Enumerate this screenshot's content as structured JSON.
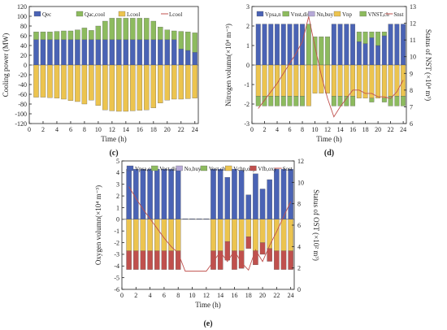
{
  "chart_data": [
    {
      "panel": "(c)",
      "type": "bar",
      "ylabel": "Cooling power (MW)",
      "xlabel": "Time (h)",
      "ylim": [
        -120,
        120
      ],
      "yticks": [
        -120,
        -100,
        -80,
        -60,
        -40,
        -20,
        0,
        20,
        40,
        60,
        80,
        100,
        120
      ],
      "xticks": [
        0,
        2,
        4,
        6,
        8,
        10,
        12,
        14,
        16,
        18,
        20,
        22,
        24
      ],
      "legend": [
        {
          "label": "Qₑc",
          "display": "Qec",
          "color": "#4a63b5"
        },
        {
          "label": "Qac,cool",
          "display": "Qac,cool",
          "color": "#8dbb5e"
        },
        {
          "label": "Lcool",
          "display": "Lcool",
          "color": "#ecc44f"
        },
        {
          "label": "Lcool",
          "display": "Lcool",
          "color": "#c0504d",
          "line": true
        }
      ],
      "x": [
        1,
        2,
        3,
        4,
        5,
        6,
        7,
        8,
        9,
        10,
        11,
        12,
        13,
        14,
        15,
        16,
        17,
        18,
        19,
        20,
        21,
        22,
        23,
        24
      ],
      "series": [
        {
          "name": "Qec",
          "color": "#4a63b5",
          "values": [
            52,
            52,
            52,
            52,
            52,
            52,
            52,
            52,
            52,
            52,
            52,
            52,
            52,
            52,
            52,
            52,
            52,
            52,
            52,
            52,
            52,
            33,
            30,
            26
          ]
        },
        {
          "name": "Qac,cool",
          "color": "#8dbb5e",
          "values": [
            16,
            16,
            16,
            17,
            18,
            18,
            20,
            24,
            19,
            28,
            38,
            44,
            44,
            44,
            44,
            44,
            44,
            38,
            26,
            20,
            18,
            36,
            38,
            40
          ]
        },
        {
          "name": "Lcool",
          "color": "#ecc44f",
          "values": [
            -66,
            -66,
            -67,
            -68,
            -70,
            -73,
            -75,
            -80,
            -72,
            -83,
            -92,
            -94,
            -95,
            -95,
            -94,
            -93,
            -92,
            -88,
            -78,
            -72,
            -70,
            -70,
            -69,
            -68
          ]
        }
      ]
    },
    {
      "panel": "(d)",
      "type": "bar",
      "ylabel": "Nitrogen volumn(×10⁴ m⁻³)",
      "y2label": "Status of NST (×10⁴ m³)",
      "xlabel": "Time (h)",
      "ylim": [
        -3,
        3
      ],
      "y2lim": [
        6,
        13
      ],
      "yticks": [
        -3,
        -2,
        -1,
        0,
        1,
        2,
        3
      ],
      "y2ticks": [
        6,
        7,
        8,
        9,
        10,
        11,
        12,
        13
      ],
      "xticks": [
        0,
        2,
        4,
        6,
        8,
        10,
        12,
        14,
        16,
        18,
        20,
        22,
        24
      ],
      "legend": [
        {
          "display": "Vpsa,n",
          "color": "#4a63b5"
        },
        {
          "display": "Vnst,dis",
          "color": "#8dbb5e"
        },
        {
          "display": "Nn,buy",
          "color": "#b6a9d8"
        },
        {
          "display": "Vnp",
          "color": "#ecc44f"
        },
        {
          "display": "VNST,ch",
          "color": "#8dbb5e"
        },
        {
          "display": "Snst",
          "color": "#c0504d",
          "line": true
        }
      ],
      "x": [
        1,
        2,
        3,
        4,
        5,
        6,
        7,
        8,
        9,
        10,
        11,
        12,
        13,
        14,
        15,
        16,
        17,
        18,
        19,
        20,
        21,
        22,
        23,
        24
      ],
      "series": [
        {
          "name": "Vpsa,n",
          "color": "#4a63b5",
          "values": [
            2.1,
            2.1,
            2.1,
            2.1,
            2.1,
            2.1,
            2.1,
            2.1,
            0,
            0,
            0,
            0,
            2.1,
            2.1,
            2.1,
            2.1,
            1.2,
            1.1,
            1.4,
            1.0,
            1.5,
            2.1,
            2.1,
            2.1
          ]
        },
        {
          "name": "Vnst,dis",
          "color": "#8dbb5e",
          "values": [
            0,
            0,
            0,
            0,
            0,
            0,
            0,
            0,
            2.1,
            1.45,
            1.45,
            1.45,
            0,
            0,
            0,
            0,
            0.5,
            0.6,
            0.3,
            0.7,
            0.2,
            0,
            0,
            0
          ]
        },
        {
          "name": "Vnp",
          "color": "#ecc44f",
          "values": [
            -1.6,
            -1.6,
            -1.6,
            -1.6,
            -1.6,
            -1.6,
            -1.6,
            -1.6,
            -2.1,
            -1.45,
            -1.45,
            -1.45,
            -1.6,
            -1.6,
            -1.6,
            -1.6,
            -1.7,
            -1.7,
            -1.7,
            -1.7,
            -1.7,
            -1.6,
            -1.6,
            -1.6
          ]
        },
        {
          "name": "VNST,ch",
          "color": "#8dbb5e",
          "values": [
            -0.5,
            -0.5,
            -0.5,
            -0.5,
            -0.5,
            -0.5,
            -0.5,
            -0.5,
            0,
            0,
            0,
            0,
            -0.5,
            -0.5,
            -0.5,
            -0.5,
            0,
            0,
            -0.2,
            0,
            -0.2,
            -0.5,
            -0.5,
            -0.5
          ]
        },
        {
          "name": "Snst",
          "color": "#c0504d",
          "axis": "right",
          "values": [
            6.9,
            7.4,
            7.9,
            8.4,
            9.0,
            9.6,
            10.2,
            10.9,
            12.4,
            10.6,
            8.9,
            7.5,
            6.4,
            7.0,
            7.5,
            8.0,
            8.0,
            7.8,
            7.8,
            7.6,
            7.6,
            7.5,
            7.9,
            8.6
          ]
        }
      ]
    },
    {
      "panel": "(e)",
      "type": "bar",
      "ylabel": "Oxygen volumn(×10⁴ m⁻³)",
      "y2label": "Status of OST (×10² m³)",
      "xlabel": "Time (h)",
      "ylim": [
        -6,
        5
      ],
      "y2lim": [
        0,
        12
      ],
      "yticks": [
        -6,
        -5,
        -4,
        -3,
        -2,
        -1,
        0,
        1,
        2,
        3,
        4,
        5
      ],
      "y2ticks": [
        0,
        2,
        4,
        6,
        8,
        10,
        12
      ],
      "xticks": [
        0,
        2,
        4,
        6,
        8,
        10,
        12,
        14,
        16,
        18,
        20,
        22,
        24
      ],
      "legend": [
        {
          "display": "Vpsa,o",
          "color": "#4a63b5"
        },
        {
          "display": "Vost,dis",
          "color": "#8dbb5e"
        },
        {
          "display": "No,buy",
          "color": "#b6a9d8"
        },
        {
          "display": "Vost,ch",
          "color": "#8dbb5e"
        },
        {
          "display": "Vchp,oxy",
          "color": "#ecc44f"
        },
        {
          "display": "Vfb,oxy",
          "color": "#c0504d"
        },
        {
          "display": "Sost",
          "color": "#c0504d",
          "line": true
        }
      ],
      "x": [
        1,
        2,
        3,
        4,
        5,
        6,
        7,
        8,
        9,
        10,
        11,
        12,
        13,
        14,
        15,
        16,
        17,
        18,
        19,
        20,
        21,
        22,
        23,
        24
      ],
      "series": [
        {
          "name": "Vpsa,o",
          "color": "#4a63b5",
          "values": [
            4.3,
            4.3,
            4.3,
            4.3,
            4.3,
            4.3,
            4.3,
            4.3,
            0.05,
            0.05,
            0.05,
            0.05,
            4.3,
            4.3,
            3.6,
            4.3,
            4.2,
            2.1,
            3.9,
            2.6,
            3.4,
            4.3,
            4.3,
            4.3
          ]
        },
        {
          "name": "Vchp,oxy",
          "color": "#ecc44f",
          "values": [
            -2.7,
            -2.7,
            -2.7,
            -2.7,
            -2.7,
            -2.7,
            -2.7,
            -2.7,
            0,
            0,
            0,
            0,
            -2.7,
            -2.7,
            -1.9,
            -2.7,
            -2.7,
            -1.5,
            -2.7,
            -2.0,
            -2.5,
            -2.7,
            -2.7,
            -2.7
          ]
        },
        {
          "name": "Vfb,oxy",
          "color": "#c0504d",
          "values": [
            -1.6,
            -1.6,
            -1.6,
            -1.6,
            -1.6,
            -1.6,
            -1.6,
            -1.6,
            0,
            0,
            0,
            0,
            -1.6,
            -1.6,
            -1.6,
            -1.6,
            -1.5,
            -1.0,
            -1.2,
            -1.0,
            -1.1,
            -1.6,
            -1.6,
            -1.6
          ]
        },
        {
          "name": "Sost",
          "color": "#c0504d",
          "axis": "right",
          "values": [
            9.6,
            8.5,
            7.5,
            6.6,
            5.7,
            4.8,
            4.0,
            3.4,
            1.7,
            1.7,
            1.7,
            1.7,
            2.6,
            3.5,
            2.6,
            3.6,
            2.5,
            1.8,
            3.7,
            2.6,
            4.1,
            5.4,
            6.8,
            8.2
          ]
        }
      ]
    }
  ]
}
